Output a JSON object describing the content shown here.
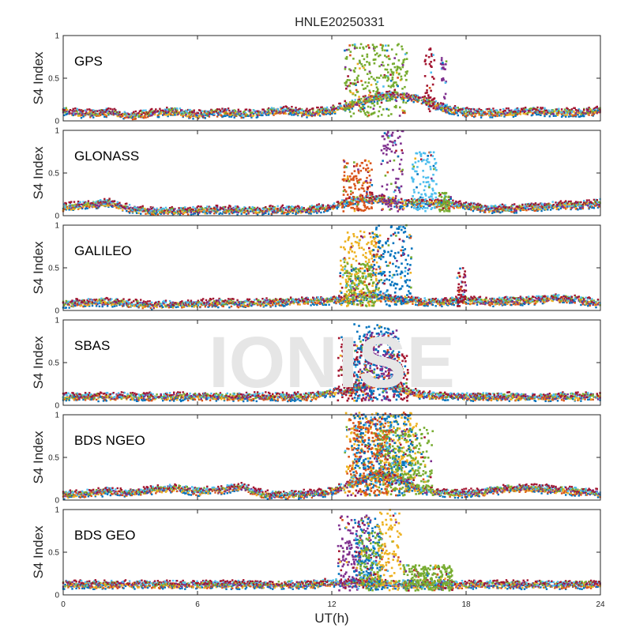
{
  "figure": {
    "title": "HNLE20250331",
    "xlabel": "UT(h)",
    "watermark": "IONISE",
    "colors": {
      "background": "#ffffff",
      "panel_background": "#ffffff",
      "axis": "#262626",
      "tick_label": "#262626",
      "watermark": "#e6e6e6",
      "series": [
        "#0072BD",
        "#D95319",
        "#EDB120",
        "#7E2F8E",
        "#77AC30",
        "#4DBEEE",
        "#A2142F"
      ]
    }
  },
  "chart_data": [
    {
      "type": "scatter",
      "panel_label": "GPS",
      "ylabel": "S4 Index",
      "xlim": [
        0,
        24
      ],
      "ylim": [
        0,
        1
      ],
      "xticks": [
        0,
        6,
        12,
        18,
        24
      ],
      "yticks": [
        0,
        0.5,
        1
      ],
      "grid": false,
      "baseline": [
        0.12,
        0.08,
        0.1,
        0.06,
        0.09,
        0.11,
        0.07,
        0.1,
        0.08,
        0.1,
        0.12,
        0.09,
        0.13,
        0.2,
        0.28,
        0.3,
        0.25,
        0.15,
        0.1,
        0.09,
        0.1,
        0.11,
        0.1,
        0.1,
        0.12
      ],
      "bursts": [
        [
          12.6,
          15.4,
          0.85,
          4
        ],
        [
          16.2,
          16.6,
          0.8,
          6
        ],
        [
          16.9,
          17.1,
          0.7,
          3
        ]
      ]
    },
    {
      "type": "scatter",
      "panel_label": "GLONASS",
      "ylabel": "S4 Index",
      "xlim": [
        0,
        24
      ],
      "ylim": [
        0,
        1
      ],
      "xticks": [
        0,
        6,
        12,
        18,
        24
      ],
      "yticks": [
        0,
        0.5,
        1
      ],
      "grid": false,
      "baseline": [
        0.1,
        0.12,
        0.15,
        0.08,
        0.05,
        0.05,
        0.06,
        0.07,
        0.06,
        0.06,
        0.07,
        0.07,
        0.1,
        0.18,
        0.2,
        0.15,
        0.15,
        0.14,
        0.12,
        0.08,
        0.08,
        0.1,
        0.12,
        0.12,
        0.15
      ],
      "bursts": [
        [
          12.5,
          13.8,
          0.6,
          1
        ],
        [
          14.2,
          15.2,
          0.95,
          3
        ],
        [
          15.6,
          16.7,
          0.7,
          5
        ],
        [
          16.8,
          17.3,
          0.22,
          4
        ]
      ]
    },
    {
      "type": "scatter",
      "panel_label": "GALILEO",
      "ylabel": "S4 Index",
      "xlim": [
        0,
        24
      ],
      "ylim": [
        0,
        1
      ],
      "xticks": [
        0,
        6,
        12,
        18,
        24
      ],
      "yticks": [
        0,
        0.5,
        1
      ],
      "grid": false,
      "baseline": [
        0.08,
        0.09,
        0.1,
        0.08,
        0.06,
        0.07,
        0.08,
        0.09,
        0.08,
        0.09,
        0.1,
        0.11,
        0.12,
        0.15,
        0.18,
        0.12,
        0.1,
        0.1,
        0.12,
        0.1,
        0.11,
        0.12,
        0.14,
        0.12,
        0.08
      ],
      "bursts": [
        [
          12.4,
          14.2,
          0.88,
          2
        ],
        [
          13.8,
          15.6,
          0.95,
          0
        ],
        [
          17.6,
          18.0,
          0.45,
          6
        ],
        [
          12.6,
          14.0,
          0.5,
          4
        ]
      ]
    },
    {
      "type": "scatter",
      "panel_label": "SBAS",
      "ylabel": "S4 Index",
      "xlim": [
        0,
        24
      ],
      "ylim": [
        0,
        1
      ],
      "xticks": [
        0,
        6,
        12,
        18,
        24
      ],
      "yticks": [
        0,
        0.5,
        1
      ],
      "grid": false,
      "baseline": [
        0.1,
        0.1,
        0.1,
        0.1,
        0.1,
        0.1,
        0.1,
        0.1,
        0.1,
        0.1,
        0.1,
        0.1,
        0.15,
        0.2,
        0.25,
        0.2,
        0.12,
        0.1,
        0.1,
        0.1,
        0.1,
        0.1,
        0.1,
        0.1,
        0.1
      ],
      "bursts": [
        [
          12.3,
          13.9,
          0.75,
          6
        ],
        [
          14.5,
          15.4,
          0.55,
          6
        ],
        [
          13.0,
          15.0,
          0.9,
          0
        ],
        [
          13.5,
          14.8,
          0.8,
          3
        ]
      ]
    },
    {
      "type": "scatter",
      "panel_label": "BDS NGEO",
      "ylabel": "S4 Index",
      "xlim": [
        0,
        24
      ],
      "ylim": [
        0,
        1
      ],
      "xticks": [
        0,
        6,
        12,
        18,
        24
      ],
      "yticks": [
        0,
        0.5,
        1
      ],
      "grid": false,
      "baseline": [
        0.06,
        0.08,
        0.1,
        0.08,
        0.12,
        0.14,
        0.1,
        0.12,
        0.15,
        0.06,
        0.06,
        0.07,
        0.1,
        0.2,
        0.3,
        0.25,
        0.12,
        0.08,
        0.08,
        0.1,
        0.14,
        0.14,
        0.12,
        0.1,
        0.08
      ],
      "bursts": [
        [
          12.6,
          15.8,
          0.98,
          2
        ],
        [
          13.0,
          15.6,
          0.95,
          0
        ],
        [
          14.0,
          16.5,
          0.8,
          4
        ],
        [
          12.8,
          14.6,
          0.9,
          1
        ]
      ]
    },
    {
      "type": "scatter",
      "panel_label": "BDS GEO",
      "ylabel": "S4 Index",
      "xlim": [
        0,
        24
      ],
      "ylim": [
        0,
        1
      ],
      "xticks": [
        0,
        6,
        12,
        18,
        24
      ],
      "yticks": [
        0,
        0.5,
        1
      ],
      "grid": false,
      "baseline": [
        0.12,
        0.12,
        0.12,
        0.12,
        0.12,
        0.12,
        0.12,
        0.12,
        0.12,
        0.12,
        0.12,
        0.12,
        0.14,
        0.14,
        0.14,
        0.12,
        0.12,
        0.12,
        0.12,
        0.12,
        0.12,
        0.12,
        0.12,
        0.12,
        0.12
      ],
      "bursts": [
        [
          12.3,
          13.8,
          0.88,
          3
        ],
        [
          13.0,
          14.3,
          0.9,
          0
        ],
        [
          14.0,
          15.1,
          0.95,
          2
        ],
        [
          13.2,
          14.2,
          0.7,
          4
        ],
        [
          15.2,
          17.4,
          0.3,
          4
        ]
      ]
    }
  ]
}
